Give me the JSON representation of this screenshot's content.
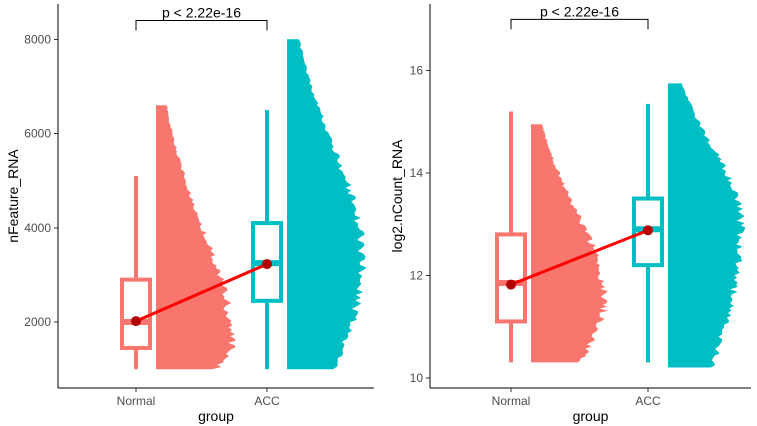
{
  "chart_data": [
    {
      "type": "boxplot_halfviolin",
      "xlabel": "group",
      "ylabel": "nFeature_RNA",
      "categories": [
        "Normal",
        "ACC"
      ],
      "colors": [
        "#F8766D",
        "#00BFC4"
      ],
      "mean_line_color": "#FF0000",
      "mean_point_color": "#B20000",
      "ylim": [
        600,
        8750
      ],
      "yticks": [
        2000,
        4000,
        6000,
        8000
      ],
      "ytick_labels": [
        "2000",
        "4000",
        "6000",
        "8000"
      ],
      "boxes": [
        {
          "group": "Normal",
          "min": 1000,
          "q1": 1450,
          "median": 2000,
          "q3": 2900,
          "max": 5100,
          "mean": 2020
        },
        {
          "group": "ACC",
          "min": 1000,
          "q1": 2450,
          "median": 3250,
          "q3": 4100,
          "max": 6500,
          "mean": 3230
        }
      ],
      "distributions": [
        {
          "group": "Normal",
          "min": 1000,
          "max": 6600,
          "peak": 1500
        },
        {
          "group": "ACC",
          "min": 1000,
          "max": 8000,
          "peak": 3300
        }
      ],
      "comparison": {
        "groups": [
          "Normal",
          "ACC"
        ],
        "label": "p < 2.22e-16",
        "y": 8400
      }
    },
    {
      "type": "boxplot_halfviolin",
      "xlabel": "group",
      "ylabel": "log2.nCount_RNA",
      "categories": [
        "Normal",
        "ACC"
      ],
      "colors": [
        "#F8766D",
        "#00BFC4"
      ],
      "mean_line_color": "#FF0000",
      "mean_point_color": "#B20000",
      "ylim": [
        9.8,
        17.3
      ],
      "yticks": [
        10,
        12,
        14,
        16
      ],
      "ytick_labels": [
        "10",
        "12",
        "14",
        "16"
      ],
      "boxes": [
        {
          "group": "Normal",
          "min": 10.3,
          "q1": 11.1,
          "median": 11.85,
          "q3": 12.8,
          "max": 15.2,
          "mean": 11.82
        },
        {
          "group": "ACC",
          "min": 10.3,
          "q1": 12.2,
          "median": 12.9,
          "q3": 13.5,
          "max": 15.35,
          "mean": 12.88
        }
      ],
      "distributions": [
        {
          "group": "Normal",
          "min": 10.3,
          "max": 14.95,
          "peak": 11.5
        },
        {
          "group": "ACC",
          "min": 10.2,
          "max": 15.75,
          "peak": 13.0
        }
      ],
      "comparison": {
        "groups": [
          "Normal",
          "ACC"
        ],
        "label": "p < 2.22e-16",
        "y": 17.0
      }
    }
  ]
}
